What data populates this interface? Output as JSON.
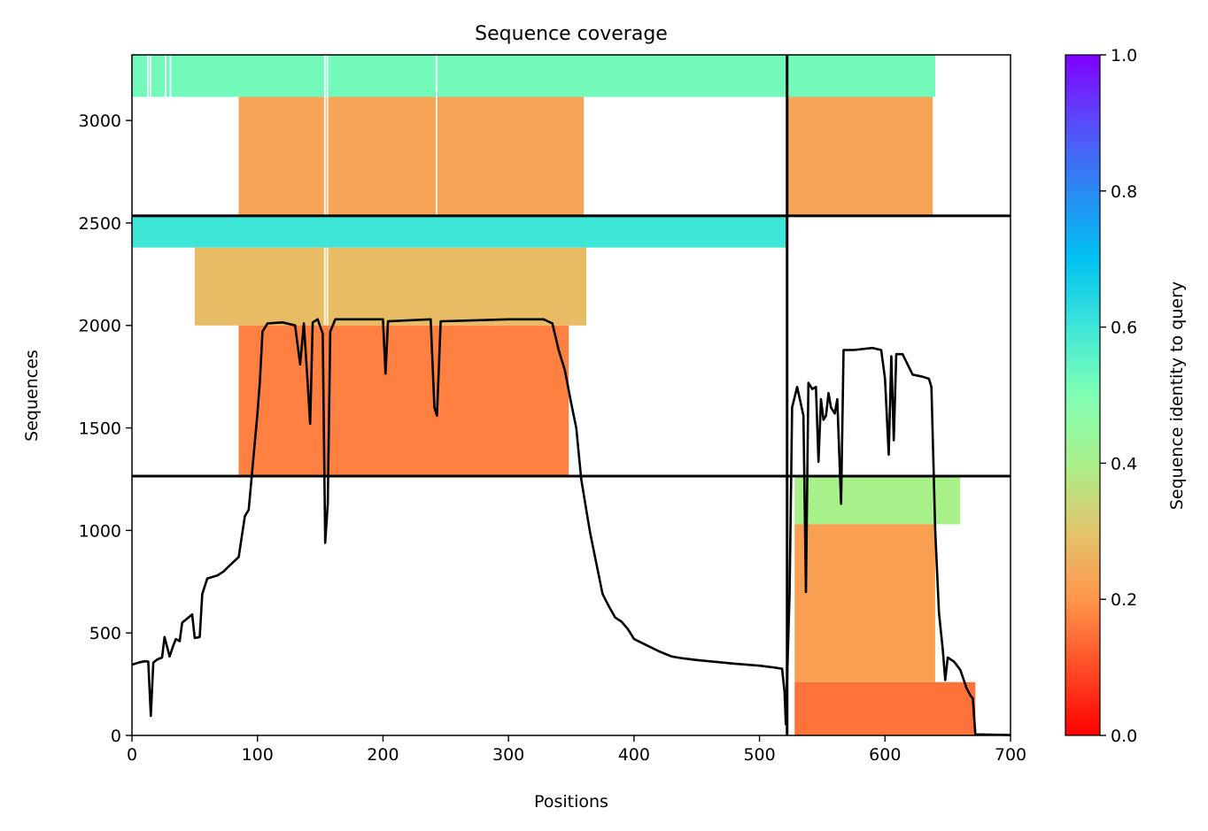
{
  "chart_data": {
    "type": "heatmap",
    "title": "Sequence coverage",
    "xlabel": "Positions",
    "ylabel": "Sequences",
    "xlim": [
      0,
      700
    ],
    "ylim": [
      0,
      3320
    ],
    "x_ticks": [
      0,
      100,
      200,
      300,
      400,
      500,
      600,
      700
    ],
    "y_ticks": [
      0,
      500,
      1000,
      1500,
      2000,
      2500,
      3000
    ],
    "colorbar": {
      "label": "Sequence identity to query",
      "range": [
        0,
        1
      ],
      "ticks": [
        0.0,
        0.2,
        0.4,
        0.6,
        0.8,
        1.0
      ],
      "tick_labels": [
        "0.0",
        "0.2",
        "0.4",
        "0.6",
        "0.8",
        "1.0"
      ],
      "colormap": "rainbow"
    },
    "grid": false,
    "dividers": {
      "x": [
        522
      ],
      "y": [
        1265,
        2535
      ]
    },
    "coverage_blocks": [
      {
        "x0": 0,
        "x1": 522,
        "y0": 3115,
        "y1": 3320,
        "identity": 0.52
      },
      {
        "x0": 522,
        "x1": 640,
        "y0": 3115,
        "y1": 3320,
        "identity": 0.52
      },
      {
        "x0": 85,
        "x1": 360,
        "y0": 2540,
        "y1": 3115,
        "identity": 0.23
      },
      {
        "x0": 522,
        "x1": 638,
        "y0": 2540,
        "y1": 3115,
        "identity": 0.23
      },
      {
        "x0": 0,
        "x1": 522,
        "y0": 2380,
        "y1": 2535,
        "identity": 0.6
      },
      {
        "x0": 50,
        "x1": 362,
        "y0": 2000,
        "y1": 2380,
        "identity": 0.28
      },
      {
        "x0": 85,
        "x1": 348,
        "y0": 1265,
        "y1": 2000,
        "identity": 0.17
      },
      {
        "x0": 528,
        "x1": 660,
        "y0": 1030,
        "y1": 1265,
        "identity": 0.4
      },
      {
        "x0": 528,
        "x1": 640,
        "y0": 260,
        "y1": 1030,
        "identity": 0.22
      },
      {
        "x0": 528,
        "x1": 672,
        "y0": 0,
        "y1": 260,
        "identity": 0.15
      }
    ],
    "series": [
      {
        "type": "line",
        "points": [
          [
            0,
            345
          ],
          [
            5,
            355
          ],
          [
            10,
            362
          ],
          [
            13,
            360
          ],
          [
            15,
            95
          ],
          [
            17,
            355
          ],
          [
            20,
            370
          ],
          [
            24,
            380
          ],
          [
            26,
            480
          ],
          [
            30,
            385
          ],
          [
            33,
            440
          ],
          [
            35,
            470
          ],
          [
            38,
            460
          ],
          [
            40,
            550
          ],
          [
            45,
            575
          ],
          [
            48,
            590
          ],
          [
            50,
            475
          ],
          [
            54,
            480
          ],
          [
            56,
            690
          ],
          [
            60,
            765
          ],
          [
            68,
            780
          ],
          [
            73,
            800
          ],
          [
            78,
            830
          ],
          [
            85,
            870
          ],
          [
            90,
            1070
          ],
          [
            93,
            1100
          ],
          [
            96,
            1300
          ],
          [
            100,
            1570
          ],
          [
            102,
            1730
          ],
          [
            104,
            1970
          ],
          [
            108,
            2010
          ],
          [
            120,
            2015
          ],
          [
            130,
            2000
          ],
          [
            134,
            1810
          ],
          [
            137,
            2010
          ],
          [
            140,
            1720
          ],
          [
            142,
            1520
          ],
          [
            144,
            2015
          ],
          [
            148,
            2030
          ],
          [
            152,
            1960
          ],
          [
            154,
            940
          ],
          [
            156,
            1130
          ],
          [
            158,
            1970
          ],
          [
            162,
            2030
          ],
          [
            200,
            2030
          ],
          [
            202,
            1765
          ],
          [
            204,
            2020
          ],
          [
            238,
            2030
          ],
          [
            241,
            1600
          ],
          [
            243,
            1560
          ],
          [
            246,
            2020
          ],
          [
            300,
            2030
          ],
          [
            328,
            2030
          ],
          [
            335,
            2010
          ],
          [
            340,
            1880
          ],
          [
            345,
            1780
          ],
          [
            350,
            1620
          ],
          [
            354,
            1500
          ],
          [
            358,
            1250
          ],
          [
            362,
            1100
          ],
          [
            365,
            990
          ],
          [
            370,
            840
          ],
          [
            375,
            690
          ],
          [
            380,
            630
          ],
          [
            385,
            575
          ],
          [
            390,
            555
          ],
          [
            395,
            520
          ],
          [
            400,
            470
          ],
          [
            410,
            440
          ],
          [
            420,
            410
          ],
          [
            430,
            385
          ],
          [
            440,
            375
          ],
          [
            450,
            368
          ],
          [
            460,
            362
          ],
          [
            480,
            350
          ],
          [
            500,
            340
          ],
          [
            510,
            333
          ],
          [
            518,
            325
          ],
          [
            520,
            210
          ],
          [
            521,
            55
          ],
          [
            524,
            700
          ],
          [
            526,
            1600
          ],
          [
            530,
            1700
          ],
          [
            535,
            1560
          ],
          [
            537,
            700
          ],
          [
            539,
            1720
          ],
          [
            542,
            1690
          ],
          [
            545,
            1700
          ],
          [
            547,
            1335
          ],
          [
            549,
            1640
          ],
          [
            551,
            1540
          ],
          [
            553,
            1560
          ],
          [
            555,
            1670
          ],
          [
            557,
            1600
          ],
          [
            560,
            1570
          ],
          [
            562,
            1640
          ],
          [
            565,
            1130
          ],
          [
            567,
            1880
          ],
          [
            575,
            1880
          ],
          [
            590,
            1890
          ],
          [
            597,
            1880
          ],
          [
            600,
            1740
          ],
          [
            603,
            1370
          ],
          [
            605,
            1850
          ],
          [
            607,
            1440
          ],
          [
            609,
            1860
          ],
          [
            614,
            1860
          ],
          [
            622,
            1760
          ],
          [
            630,
            1750
          ],
          [
            635,
            1740
          ],
          [
            637,
            1700
          ],
          [
            640,
            1000
          ],
          [
            643,
            600
          ],
          [
            646,
            420
          ],
          [
            648,
            270
          ],
          [
            650,
            380
          ],
          [
            655,
            360
          ],
          [
            660,
            320
          ],
          [
            665,
            230
          ],
          [
            668,
            195
          ],
          [
            670,
            180
          ],
          [
            672,
            5
          ],
          [
            700,
            2
          ]
        ]
      }
    ]
  }
}
